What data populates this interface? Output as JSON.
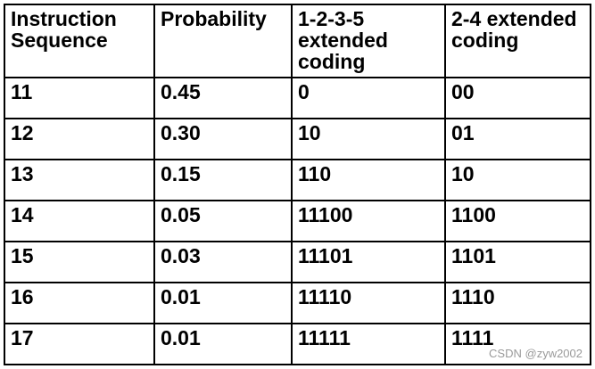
{
  "table": {
    "header": [
      "Instruction Sequence",
      "Probability",
      "1-2-3-5 extended coding",
      "2-4 extended coding"
    ],
    "rows": [
      [
        "11",
        "0.45",
        "0",
        "00"
      ],
      [
        "12",
        "0.30",
        "10",
        "01"
      ],
      [
        "13",
        "0.15",
        "110",
        "10"
      ],
      [
        "14",
        "0.05",
        "11100",
        "1100"
      ],
      [
        "15",
        "0.03",
        "11101",
        "1101"
      ],
      [
        "16",
        "0.01",
        "11110",
        "1110"
      ],
      [
        "17",
        "0.01",
        "11111",
        "1111"
      ]
    ]
  },
  "watermark": "CSDN @zyw2002"
}
